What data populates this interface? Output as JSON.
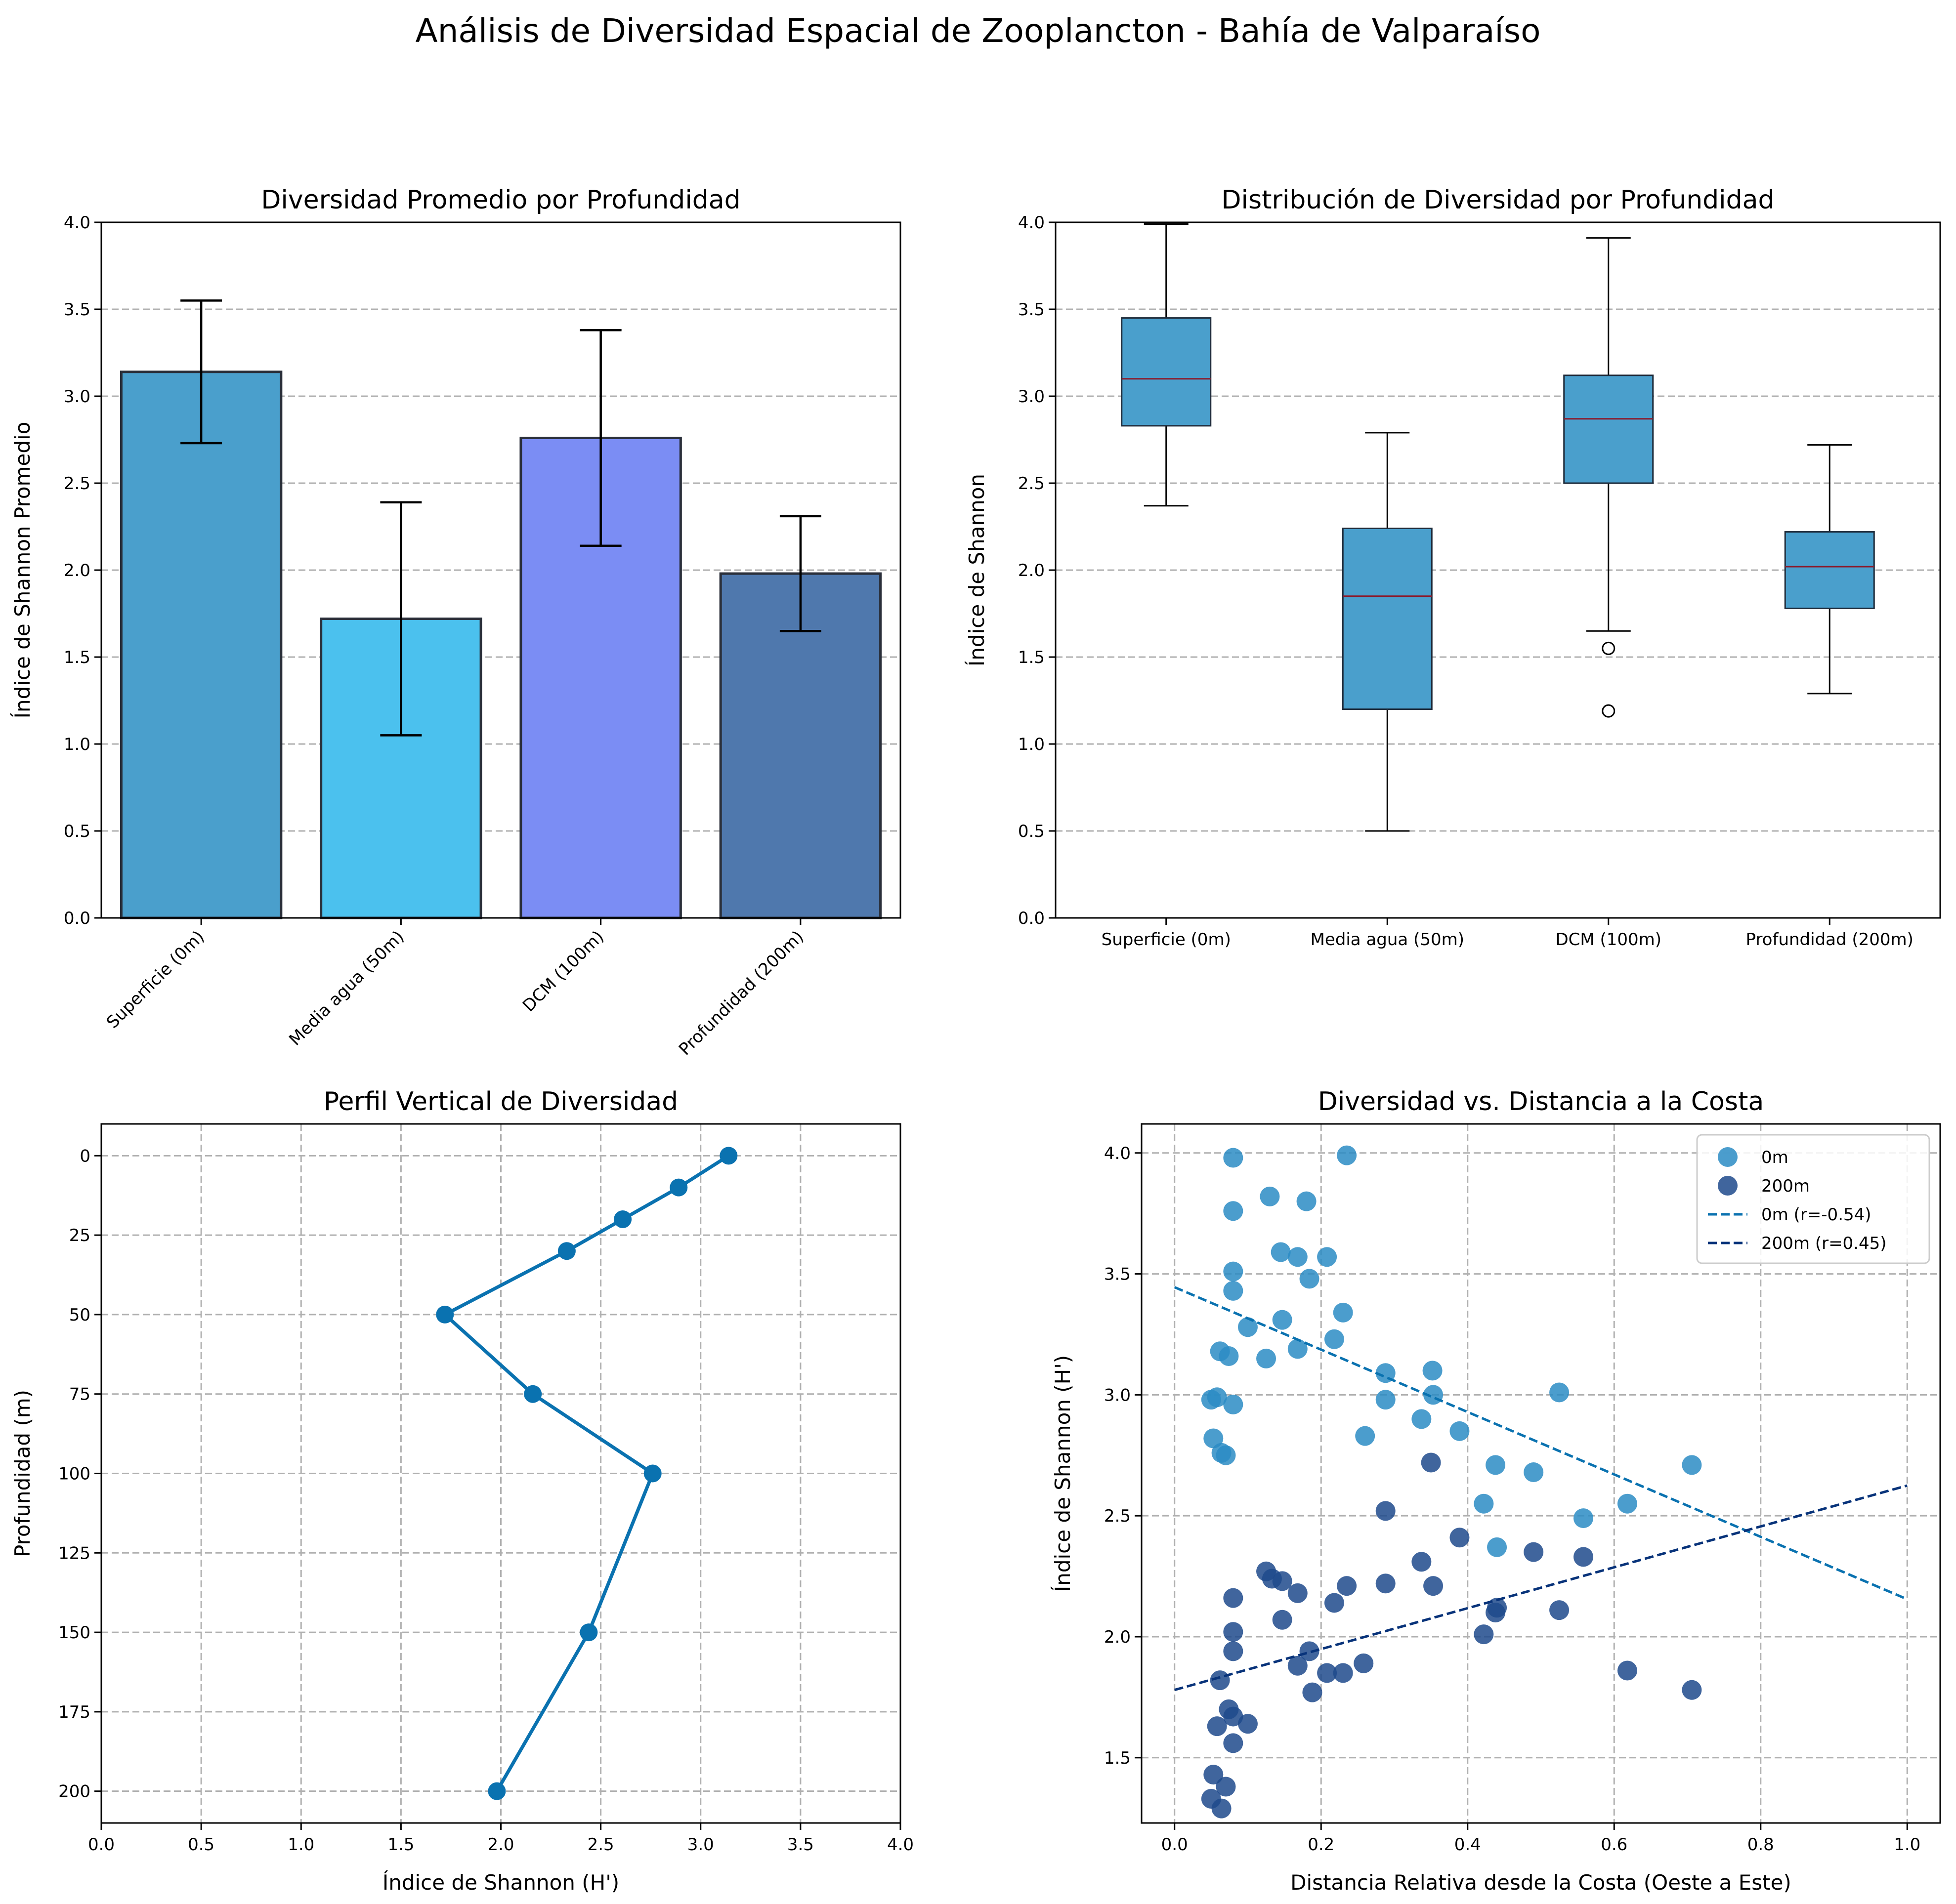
{
  "figure": {
    "suptitle": "Análisis de Diversidad Espacial de Zooplancton - Bahía de Valparaíso"
  },
  "chart_data": [
    {
      "type": "bar",
      "title": "Diversidad Promedio por Profundidad",
      "xlabel": "",
      "ylabel": "Índice de Shannon Promedio",
      "categories": [
        "Superficie (0m)",
        "Media agua (50m)",
        "DCM (100m)",
        "Profundidad (200m)"
      ],
      "values": [
        3.14,
        1.72,
        2.76,
        1.98
      ],
      "errors": [
        0.41,
        0.67,
        0.62,
        0.33
      ],
      "colors": [
        "#4a9fcc",
        "#4bc1ee",
        "#7b8df4",
        "#4f78ad"
      ],
      "ylim": [
        0,
        4
      ],
      "yticks": [
        0.0,
        0.5,
        1.0,
        1.5,
        2.0,
        2.5,
        3.0,
        3.5,
        4.0
      ],
      "grid": "y"
    },
    {
      "type": "box",
      "title": "Distribución de Diversidad por Profundidad",
      "xlabel": "",
      "ylabel": "Índice de Shannon",
      "categories": [
        "Superficie (0m)",
        "Media agua (50m)",
        "DCM (100m)",
        "Profundidad (200m)"
      ],
      "boxes": [
        {
          "whislo": 2.37,
          "q1": 2.83,
          "med": 3.1,
          "q3": 3.45,
          "whishi": 3.99,
          "fliers": []
        },
        {
          "whislo": 0.5,
          "q1": 1.2,
          "med": 1.85,
          "q3": 2.24,
          "whishi": 2.79,
          "fliers": []
        },
        {
          "whislo": 1.65,
          "q1": 2.5,
          "med": 2.87,
          "q3": 3.12,
          "whishi": 3.91,
          "fliers": [
            1.55,
            1.19
          ]
        },
        {
          "whislo": 1.29,
          "q1": 1.78,
          "med": 2.02,
          "q3": 2.22,
          "whishi": 2.72,
          "fliers": []
        }
      ],
      "box_color": "#4a9fcc",
      "median_color": "#8b1a2b",
      "ylim": [
        0,
        4
      ],
      "yticks": [
        0.0,
        0.5,
        1.0,
        1.5,
        2.0,
        2.5,
        3.0,
        3.5,
        4.0
      ],
      "grid": "y"
    },
    {
      "type": "line",
      "title": "Perfil Vertical de Diversidad",
      "xlabel": "Índice de Shannon (H')",
      "ylabel": "Profundidad (m)",
      "x": [
        3.14,
        2.89,
        2.61,
        2.33,
        1.72,
        2.16,
        2.76,
        2.44,
        1.98
      ],
      "y": [
        0,
        10,
        20,
        30,
        50,
        75,
        100,
        150,
        200
      ],
      "color": "#0a72b0",
      "xlim": [
        0,
        4
      ],
      "ylim": [
        210,
        -10
      ],
      "xticks": [
        0.0,
        0.5,
        1.0,
        1.5,
        2.0,
        2.5,
        3.0,
        3.5,
        4.0
      ],
      "yticks": [
        0,
        25,
        50,
        75,
        100,
        125,
        150,
        175,
        200
      ],
      "y_inverted": true,
      "grid": "both"
    },
    {
      "type": "scatter",
      "title": "Diversidad vs. Distancia a la Costa",
      "xlabel": "Distancia Relativa desde la Costa (Oeste a Este)",
      "ylabel": "Índice de Shannon (H')",
      "xlim": [
        -0.045,
        1.045
      ],
      "ylim": [
        1.23,
        4.12
      ],
      "xticks": [
        0.0,
        0.2,
        0.4,
        0.6,
        0.8,
        1.0
      ],
      "yticks": [
        1.5,
        2.0,
        2.5,
        3.0,
        3.5,
        4.0
      ],
      "grid": "both",
      "legend_position": "upper right",
      "series": [
        {
          "name": "0m",
          "color": "#2b8cc4",
          "x": [
            0.08,
            0.235,
            0.13,
            0.18,
            0.08,
            0.145,
            0.168,
            0.208,
            0.08,
            0.184,
            0.08,
            0.23,
            0.147,
            0.1,
            0.218,
            0.062,
            0.074,
            0.168,
            0.125,
            0.288,
            0.352,
            0.525,
            0.05,
            0.058,
            0.288,
            0.353,
            0.08,
            0.337,
            0.389,
            0.26,
            0.053,
            0.064,
            0.07,
            0.706,
            0.438,
            0.49,
            0.422,
            0.618,
            0.558,
            0.44
          ],
          "y": [
            3.98,
            3.99,
            3.82,
            3.8,
            3.76,
            3.59,
            3.57,
            3.57,
            3.51,
            3.48,
            3.43,
            3.34,
            3.31,
            3.28,
            3.23,
            3.18,
            3.16,
            3.19,
            3.15,
            3.09,
            3.1,
            3.01,
            2.98,
            2.99,
            2.98,
            3.0,
            2.96,
            2.9,
            2.85,
            2.83,
            2.82,
            2.76,
            2.75,
            2.71,
            2.71,
            2.68,
            2.55,
            2.55,
            2.49,
            2.37
          ]
        },
        {
          "name": "200m",
          "color": "#1e4a8c",
          "x": [
            0.35,
            0.288,
            0.389,
            0.125,
            0.337,
            0.133,
            0.49,
            0.147,
            0.558,
            0.288,
            0.235,
            0.353,
            0.168,
            0.08,
            0.218,
            0.44,
            0.525,
            0.438,
            0.147,
            0.08,
            0.422,
            0.184,
            0.08,
            0.258,
            0.168,
            0.618,
            0.208,
            0.23,
            0.062,
            0.706,
            0.188,
            0.074,
            0.08,
            0.1,
            0.058,
            0.08,
            0.053,
            0.07,
            0.05,
            0.064
          ],
          "y": [
            2.72,
            2.52,
            2.41,
            2.27,
            2.31,
            2.24,
            2.35,
            2.23,
            2.33,
            2.22,
            2.21,
            2.21,
            2.18,
            2.16,
            2.14,
            2.12,
            2.11,
            2.1,
            2.07,
            2.02,
            2.01,
            1.94,
            1.94,
            1.89,
            1.88,
            1.86,
            1.85,
            1.85,
            1.82,
            1.78,
            1.77,
            1.7,
            1.67,
            1.64,
            1.63,
            1.56,
            1.43,
            1.38,
            1.33,
            1.29
          ]
        }
      ],
      "trendlines": [
        {
          "name": "0m (r=-0.54)",
          "color": "#0a72b0",
          "x": [
            0.0,
            1.0
          ],
          "y": [
            3.445,
            2.155
          ]
        },
        {
          "name": "200m (r=0.45)",
          "color": "#08337a",
          "x": [
            0.0,
            1.0
          ],
          "y": [
            1.78,
            2.625
          ]
        }
      ]
    }
  ]
}
